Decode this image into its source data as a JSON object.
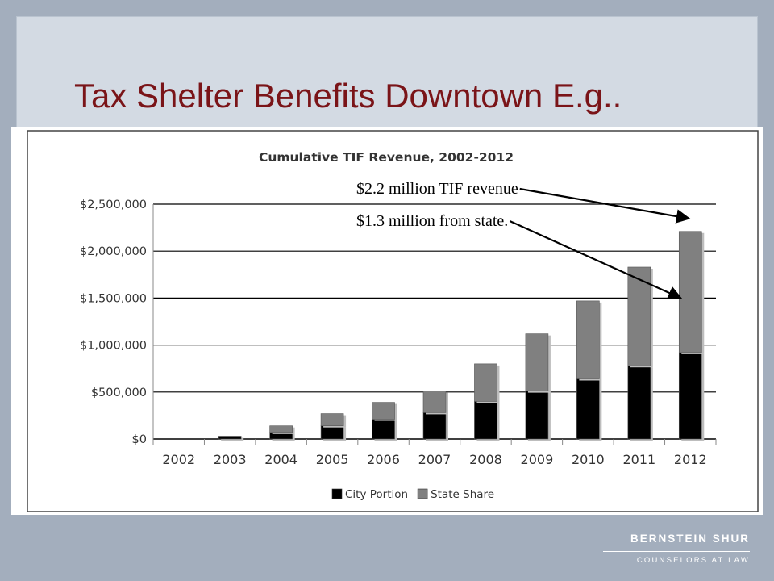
{
  "slide": {
    "title": "Tax Shelter Benefits Downtown E.g.."
  },
  "logo": {
    "name": "BERNSTEIN SHUR",
    "tagline": "COUNSELORS AT LAW"
  },
  "annotations": [
    {
      "text": "$2.2 million TIF revenue",
      "target_year": "2012",
      "target": "total"
    },
    {
      "text": "$1.3 million from state.",
      "target_year": "2012",
      "target": "state"
    }
  ],
  "colors": {
    "background": "#a3aebd",
    "header_panel": "#d3dae3",
    "title": "#7a1418",
    "city_portion": "#000000",
    "state_share": "#808080"
  },
  "chart_data": {
    "type": "bar",
    "stacked": true,
    "title": "Cumulative TIF Revenue, 2002-2012",
    "xlabel": "",
    "ylabel": "",
    "categories": [
      "2002",
      "2003",
      "2004",
      "2005",
      "2006",
      "2007",
      "2008",
      "2009",
      "2010",
      "2011",
      "2012"
    ],
    "series": [
      {
        "name": "City Portion",
        "color": "#000000",
        "values": [
          0,
          30000,
          70000,
          140000,
          210000,
          280000,
          400000,
          510000,
          640000,
          780000,
          920000
        ]
      },
      {
        "name": "State Share",
        "color": "#808080",
        "values": [
          0,
          0,
          70000,
          130000,
          180000,
          230000,
          400000,
          610000,
          830000,
          1050000,
          1290000
        ]
      }
    ],
    "ylim": [
      0,
      2500000
    ],
    "yticks": [
      0,
      500000,
      1000000,
      1500000,
      2000000,
      2500000
    ],
    "ytick_labels": [
      "$0",
      "$500,000",
      "$1,000,000",
      "$1,500,000",
      "$2,000,000",
      "$2,500,000"
    ],
    "grid": true,
    "legend": "bottom"
  }
}
